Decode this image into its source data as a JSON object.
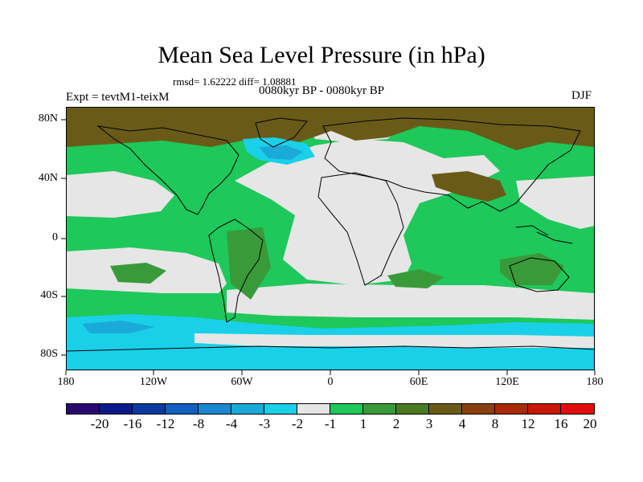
{
  "title": "Mean Sea Level Pressure (in hPa)",
  "stats": "rmsd= 1.62222  diff= 1.08881",
  "period": "0080kyr BP - 0080kyr BP",
  "experiment": "Expt = tevtM1-teixM",
  "season": "DJF",
  "axes": {
    "y_labels": [
      "80N",
      "40N",
      "0",
      "40S",
      "80S"
    ],
    "x_labels": [
      "180",
      "120W",
      "60W",
      "0",
      "60E",
      "120E",
      "180"
    ]
  },
  "colorbar": {
    "colors": [
      "#2a0a70",
      "#0a1a8a",
      "#0a3aa0",
      "#1060c0",
      "#1a88d0",
      "#1aaad8",
      "#1ad0e8",
      "#e6e6e6",
      "#1ec85a",
      "#3a9a3a",
      "#4a7a22",
      "#6a5a18",
      "#8a4010",
      "#a82a08",
      "#c81808",
      "#e00e0e"
    ],
    "labels": [
      "-20",
      "-16",
      "-12",
      "-8",
      "-4",
      "-3",
      "-2",
      "-1",
      "1",
      "2",
      "3",
      "4",
      "8",
      "12",
      "16",
      "20"
    ]
  },
  "map_colors": {
    "pos_small": "#1ec85a",
    "neutral": "#e6e6e6",
    "pos_mid": "#3a9a3a",
    "pos_high": "#6a5a18",
    "neg_small": "#1ad0e8",
    "neg_mid": "#1aaad8"
  }
}
